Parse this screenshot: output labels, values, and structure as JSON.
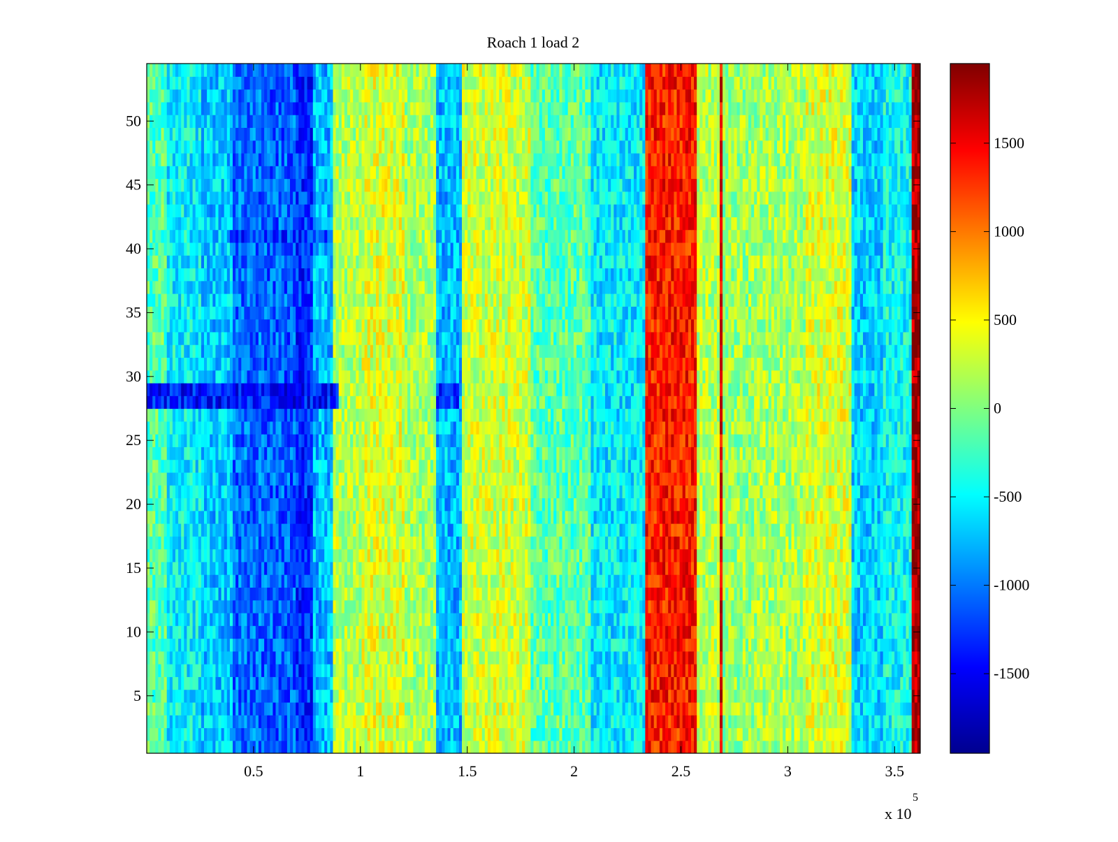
{
  "chart_data": {
    "type": "heatmap",
    "title": "Roach 1 load 2",
    "xlabel": "",
    "ylabel": "",
    "x_multiplier_label": "x 10",
    "x_multiplier_exponent": "5",
    "xlim": [
      0.0,
      3.62
    ],
    "ylim": [
      0.5,
      54.5
    ],
    "x_ticks": [
      {
        "value": 0.5,
        "label": "0.5"
      },
      {
        "value": 1.0,
        "label": "1"
      },
      {
        "value": 1.5,
        "label": "1.5"
      },
      {
        "value": 2.0,
        "label": "2"
      },
      {
        "value": 2.5,
        "label": "2.5"
      },
      {
        "value": 3.0,
        "label": "3"
      },
      {
        "value": 3.5,
        "label": "3.5"
      }
    ],
    "y_ticks": [
      {
        "value": 5,
        "label": "5"
      },
      {
        "value": 10,
        "label": "10"
      },
      {
        "value": 15,
        "label": "15"
      },
      {
        "value": 20,
        "label": "20"
      },
      {
        "value": 25,
        "label": "25"
      },
      {
        "value": 30,
        "label": "30"
      },
      {
        "value": 35,
        "label": "35"
      },
      {
        "value": 40,
        "label": "40"
      },
      {
        "value": 45,
        "label": "45"
      },
      {
        "value": 50,
        "label": "50"
      }
    ],
    "colorbar": {
      "colormap": "jet",
      "clim": [
        -1950,
        1950
      ],
      "ticks": [
        {
          "value": -1500,
          "label": "-1500"
        },
        {
          "value": -1000,
          "label": "-1000"
        },
        {
          "value": -500,
          "label": "-500"
        },
        {
          "value": 0,
          "label": "0"
        },
        {
          "value": 500,
          "label": "500"
        },
        {
          "value": 1000,
          "label": "1000"
        },
        {
          "value": 1500,
          "label": "1500"
        }
      ]
    },
    "rows": 54,
    "column_bands": [
      {
        "x_start": 0.0,
        "x_end": 0.1,
        "value": -150
      },
      {
        "x_start": 0.1,
        "x_end": 0.25,
        "value": -500
      },
      {
        "x_start": 0.25,
        "x_end": 0.4,
        "value": -700
      },
      {
        "x_start": 0.4,
        "x_end": 0.55,
        "value": -1050
      },
      {
        "x_start": 0.55,
        "x_end": 0.7,
        "value": -1100
      },
      {
        "x_start": 0.7,
        "x_end": 0.78,
        "value": -1300
      },
      {
        "x_start": 0.78,
        "x_end": 0.87,
        "value": -750
      },
      {
        "x_start": 0.87,
        "x_end": 1.0,
        "value": 200
      },
      {
        "x_start": 1.0,
        "x_end": 1.2,
        "value": 350
      },
      {
        "x_start": 1.2,
        "x_end": 1.35,
        "value": 150
      },
      {
        "x_start": 1.35,
        "x_end": 1.48,
        "value": -750
      },
      {
        "x_start": 1.48,
        "x_end": 1.8,
        "value": 300
      },
      {
        "x_start": 1.8,
        "x_end": 2.08,
        "value": -150
      },
      {
        "x_start": 2.08,
        "x_end": 2.33,
        "value": -550
      },
      {
        "x_start": 2.33,
        "x_end": 2.58,
        "value": 1380
      },
      {
        "x_start": 2.58,
        "x_end": 2.68,
        "value": 200
      },
      {
        "x_start": 2.68,
        "x_end": 2.7,
        "value": 1550
      },
      {
        "x_start": 2.7,
        "x_end": 2.85,
        "value": 100
      },
      {
        "x_start": 2.85,
        "x_end": 3.08,
        "value": 150
      },
      {
        "x_start": 3.08,
        "x_end": 3.3,
        "value": 350
      },
      {
        "x_start": 3.3,
        "x_end": 3.45,
        "value": -650
      },
      {
        "x_start": 3.45,
        "x_end": 3.58,
        "value": -450
      },
      {
        "x_start": 3.58,
        "x_end": 3.62,
        "value": 1800
      }
    ],
    "row_anomalies": [
      {
        "y_start": 27.5,
        "y_end": 29.5,
        "x_start": 0.0,
        "x_end": 0.9,
        "value": -1400
      },
      {
        "y_start": 27.5,
        "y_end": 29.5,
        "x_start": 1.35,
        "x_end": 1.46,
        "value": -1300
      },
      {
        "y_start": 40.5,
        "y_end": 41.5,
        "x_start": 0.38,
        "x_end": 0.87,
        "value": -1250
      }
    ]
  }
}
